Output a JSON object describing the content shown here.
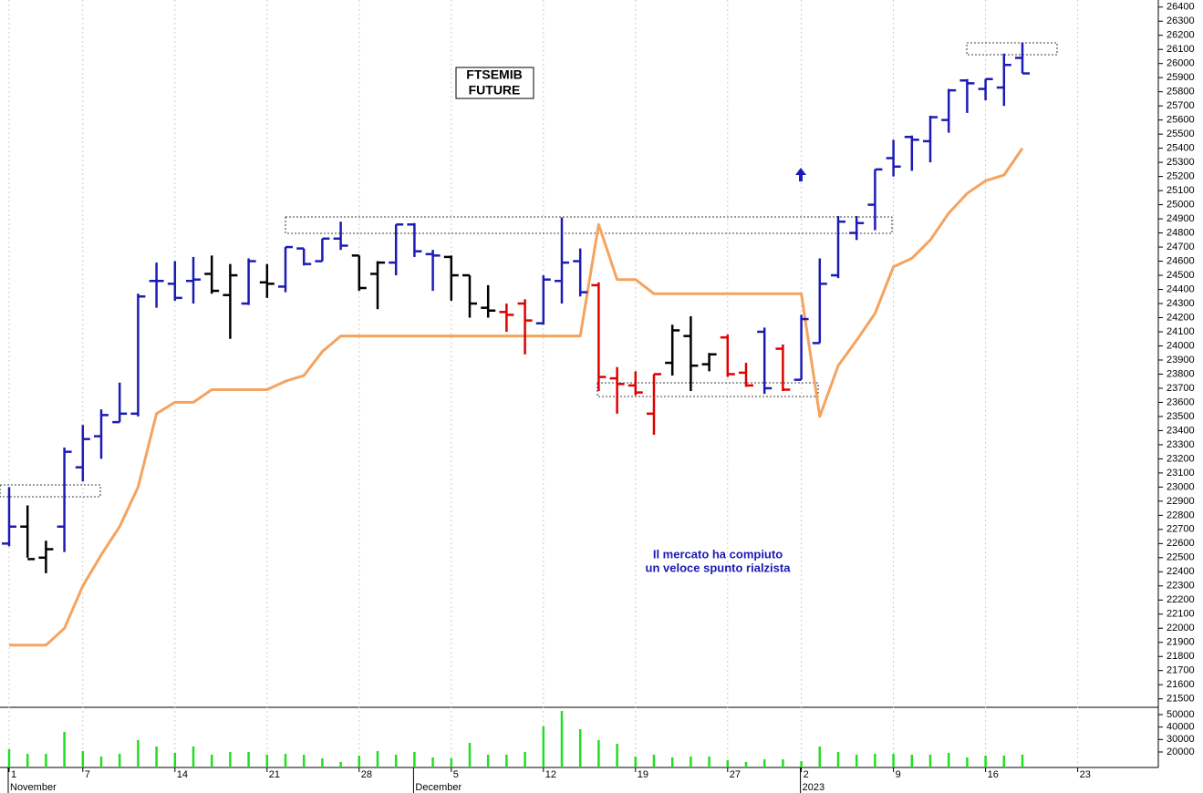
{
  "chart_data": [
    {
      "type": "ohlc",
      "title": [
        "FTSEMIB",
        "FUTURE"
      ],
      "annotation": [
        "Il mercato ha compiuto",
        "un veloce spunto rialzista"
      ],
      "categories": [
        "1",
        null,
        null,
        null,
        "7",
        null,
        null,
        null,
        null,
        "14",
        null,
        null,
        null,
        null,
        "21",
        null,
        null,
        null,
        null,
        "28",
        null,
        null,
        null,
        null,
        "5",
        null,
        null,
        null,
        null,
        "12",
        null,
        null,
        null,
        null,
        "19",
        null,
        null,
        null,
        null,
        "27",
        null,
        null,
        null,
        "2",
        null,
        null,
        null,
        null,
        "9",
        null,
        null,
        null,
        null,
        "16",
        null,
        null,
        null,
        null,
        "23",
        null,
        null,
        null,
        null
      ],
      "months": [
        "November",
        null,
        null,
        null,
        null,
        null,
        null,
        null,
        null,
        null,
        null,
        null,
        null,
        null,
        null,
        null,
        null,
        null,
        null,
        null,
        null,
        null,
        "December",
        null,
        null,
        null,
        null,
        null,
        null,
        null,
        null,
        null,
        null,
        null,
        null,
        null,
        null,
        null,
        null,
        null,
        null,
        null,
        null,
        "2023",
        null,
        null,
        null,
        null,
        null,
        null,
        null,
        null,
        null,
        null,
        null,
        null,
        null,
        null,
        null,
        null,
        null,
        null,
        null
      ],
      "open": [
        22600,
        22720,
        22500,
        22720,
        23140,
        23360,
        23460,
        23520,
        24460,
        24440,
        24460,
        24510,
        24360,
        24300,
        24450,
        24420,
        24690,
        24600,
        24760,
        24640,
        24510,
        24590,
        24860,
        24650,
        24630,
        24500,
        24270,
        24240,
        24300,
        24160,
        24460,
        24600,
        24430,
        23770,
        23720,
        23520,
        23880,
        24070,
        23870,
        24060,
        23810,
        24100,
        23980,
        23760,
        24020,
        24500,
        24800,
        25000,
        25330,
        25480,
        25450,
        25600,
        25880,
        25820,
        25830,
        26040,
        null,
        null,
        null,
        null,
        null,
        null,
        null
      ],
      "high": [
        23000,
        22870,
        22620,
        23280,
        23440,
        23550,
        23740,
        24370,
        24590,
        24600,
        24630,
        24640,
        24580,
        24620,
        24580,
        24700,
        24690,
        24760,
        24880,
        24640,
        24600,
        24860,
        24870,
        24680,
        24640,
        24500,
        24430,
        24300,
        24330,
        24500,
        24910,
        24690,
        24450,
        23850,
        23820,
        23800,
        24150,
        24210,
        23950,
        24080,
        23880,
        24130,
        24010,
        24220,
        24620,
        24920,
        24920,
        25250,
        25460,
        25490,
        25630,
        25820,
        25890,
        25890,
        26070,
        26150,
        null,
        null,
        null,
        null,
        null,
        null,
        null
      ],
      "low": [
        22580,
        22500,
        22390,
        22540,
        23040,
        23200,
        23460,
        23500,
        24270,
        24320,
        24300,
        24370,
        24050,
        24290,
        24340,
        24380,
        24570,
        24600,
        24680,
        24390,
        24260,
        24500,
        24630,
        24390,
        24320,
        24200,
        24200,
        24100,
        23940,
        24150,
        24300,
        24350,
        23680,
        23520,
        23650,
        23370,
        23790,
        23680,
        23820,
        23780,
        23710,
        23660,
        23680,
        23760,
        24020,
        24480,
        24750,
        24820,
        25200,
        25240,
        25300,
        25510,
        25650,
        25740,
        25700,
        25930,
        null,
        null,
        null,
        null,
        null,
        null,
        null
      ],
      "close": [
        22720,
        22490,
        22560,
        23250,
        23340,
        23510,
        23520,
        24350,
        24460,
        24340,
        24470,
        24390,
        24500,
        24600,
        24440,
        24700,
        24580,
        24760,
        24710,
        24410,
        24590,
        24860,
        24670,
        24640,
        24500,
        24300,
        24250,
        24220,
        24180,
        24470,
        24590,
        24380,
        23780,
        23730,
        23670,
        23800,
        24110,
        23860,
        23940,
        23800,
        23720,
        23700,
        23690,
        24190,
        24440,
        24880,
        24870,
        25250,
        25270,
        25460,
        25620,
        25810,
        25860,
        25890,
        25990,
        25930,
        null,
        null,
        null,
        null,
        null,
        null,
        null
      ],
      "colors": [
        "#1c1cb4",
        "#000000",
        "#000000",
        "#1c1cb4",
        "#1c1cb4",
        "#1c1cb4",
        "#1c1cb4",
        "#1c1cb4",
        "#1c1cb4",
        "#1c1cb4",
        "#1c1cb4",
        "#000000",
        "#000000",
        "#1c1cb4",
        "#000000",
        "#1c1cb4",
        "#1c1cb4",
        "#1c1cb4",
        "#1c1cb4",
        "#000000",
        "#000000",
        "#1c1cb4",
        "#1c1cb4",
        "#1c1cb4",
        "#000000",
        "#000000",
        "#000000",
        "#e00000",
        "#e00000",
        "#1c1cb4",
        "#1c1cb4",
        "#1c1cb4",
        "#e00000",
        "#e00000",
        "#e00000",
        "#e00000",
        "#000000",
        "#000000",
        "#000000",
        "#e00000",
        "#e00000",
        "#1c1cb4",
        "#e00000",
        "#1c1cb4",
        "#1c1cb4",
        "#1c1cb4",
        "#1c1cb4",
        "#1c1cb4",
        "#1c1cb4",
        "#1c1cb4",
        "#1c1cb4",
        "#1c1cb4",
        "#1c1cb4",
        "#1c1cb4",
        "#1c1cb4",
        "#1c1cb4",
        null,
        null,
        null,
        null,
        null,
        null,
        null
      ],
      "line": {
        "color": "#f5a35e",
        "values": [
          21880,
          21880,
          21880,
          22000,
          22300,
          22520,
          22720,
          23000,
          23520,
          23600,
          23600,
          23690,
          23690,
          23690,
          23690,
          23750,
          23790,
          23960,
          24070,
          24070,
          24070,
          24070,
          24070,
          24070,
          24070,
          24070,
          24070,
          24070,
          24070,
          24070,
          24070,
          24070,
          24860,
          24470,
          24470,
          24370,
          24370,
          24370,
          24370,
          24370,
          24370,
          24370,
          24370,
          24370,
          23500,
          23860,
          24040,
          24230,
          24560,
          24620,
          24750,
          24940,
          25080,
          25170,
          25210,
          25400,
          null,
          null,
          null,
          null,
          null,
          null,
          null
        ]
      },
      "ylim": [
        21440,
        26450
      ],
      "yticks": [
        21500,
        21600,
        21700,
        21800,
        21900,
        22000,
        22100,
        22200,
        22300,
        22400,
        22500,
        22600,
        22700,
        22800,
        22900,
        23000,
        23100,
        23200,
        23300,
        23400,
        23500,
        23600,
        23700,
        23800,
        23900,
        24000,
        24100,
        24200,
        24300,
        24400,
        24500,
        24600,
        24700,
        24800,
        24900,
        25000,
        25100,
        25200,
        25300,
        25400,
        25500,
        25600,
        25700,
        25800,
        25900,
        26000,
        26100,
        26200,
        26300,
        26400
      ],
      "grid": true
    },
    {
      "type": "bar",
      "color": "#22dd22",
      "values": [
        22200,
        18500,
        18500,
        36100,
        20700,
        16300,
        18500,
        29500,
        24400,
        19300,
        24400,
        17800,
        20000,
        20000,
        17800,
        18500,
        17800,
        14900,
        12000,
        17100,
        20700,
        17800,
        20000,
        15600,
        14900,
        27300,
        17800,
        17800,
        20000,
        40500,
        52900,
        38300,
        29500,
        26600,
        16300,
        17800,
        15600,
        16300,
        16300,
        13400,
        12000,
        14100,
        14100,
        12700,
        24400,
        20000,
        17800,
        18500,
        18500,
        17800,
        17800,
        19300,
        15600,
        17100,
        17100,
        17800,
        null,
        null,
        null,
        null,
        null,
        null,
        null
      ],
      "ylim": [
        7560,
        55840
      ],
      "yticks": [
        20000,
        30000,
        40000,
        50000
      ]
    }
  ]
}
